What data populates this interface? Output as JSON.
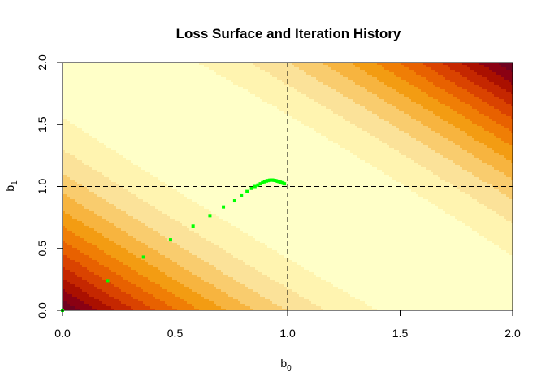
{
  "chart_data": {
    "type": "contour",
    "title": "Loss Surface and Iteration History",
    "xlabel": {
      "base": "b",
      "sub": "0"
    },
    "ylabel": {
      "base": "b",
      "sub": "1"
    },
    "xlim": [
      0,
      2
    ],
    "ylim": [
      0,
      2
    ],
    "xticks": [
      "0.0",
      "0.5",
      "1.0",
      "1.5",
      "2.0"
    ],
    "yticks": [
      "0.0",
      "0.5",
      "1.0",
      "1.5",
      "2.0"
    ],
    "reference_lines": {
      "vertical": 1.0,
      "horizontal": 1.0,
      "style": "dashed"
    },
    "contour_colors": [
      "#FFFFC8",
      "#FFF4B0",
      "#FBE299",
      "#F9CC6E",
      "#F7B43F",
      "#F39C12",
      "#F07E05",
      "#E86100",
      "#DA4300",
      "#C52700",
      "#AA1000",
      "#8A0113",
      "#6E0220"
    ],
    "iteration_color": "#00FF00",
    "iterations": [
      {
        "x": 0.0,
        "y": 0.0
      },
      {
        "x": 0.2,
        "y": 0.24
      },
      {
        "x": 0.36,
        "y": 0.43
      },
      {
        "x": 0.48,
        "y": 0.57
      },
      {
        "x": 0.58,
        "y": 0.68
      },
      {
        "x": 0.655,
        "y": 0.765
      },
      {
        "x": 0.715,
        "y": 0.835
      },
      {
        "x": 0.765,
        "y": 0.885
      },
      {
        "x": 0.795,
        "y": 0.925
      },
      {
        "x": 0.82,
        "y": 0.96
      },
      {
        "x": 0.84,
        "y": 0.985
      },
      {
        "x": 0.855,
        "y": 1.0
      },
      {
        "x": 0.868,
        "y": 1.012
      },
      {
        "x": 0.879,
        "y": 1.022
      },
      {
        "x": 0.889,
        "y": 1.031
      },
      {
        "x": 0.898,
        "y": 1.038
      },
      {
        "x": 0.906,
        "y": 1.044
      },
      {
        "x": 0.913,
        "y": 1.048
      },
      {
        "x": 0.92,
        "y": 1.051
      },
      {
        "x": 0.926,
        "y": 1.052
      },
      {
        "x": 0.932,
        "y": 1.052
      },
      {
        "x": 0.938,
        "y": 1.051
      },
      {
        "x": 0.944,
        "y": 1.049
      },
      {
        "x": 0.95,
        "y": 1.046
      },
      {
        "x": 0.956,
        "y": 1.043
      },
      {
        "x": 0.962,
        "y": 1.039
      },
      {
        "x": 0.968,
        "y": 1.035
      },
      {
        "x": 0.974,
        "y": 1.031
      },
      {
        "x": 0.98,
        "y": 1.026
      },
      {
        "x": 0.986,
        "y": 1.022
      }
    ]
  }
}
